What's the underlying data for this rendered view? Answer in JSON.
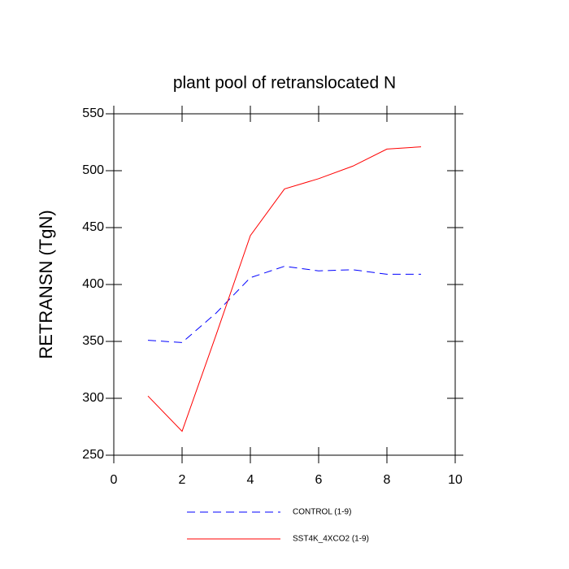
{
  "chart_data": {
    "type": "line",
    "title": "plant pool of retranslocated N",
    "y_label": "RETRANSN  (TgN)",
    "x": [
      1,
      2,
      3,
      4,
      5,
      6,
      7,
      8,
      9
    ],
    "series": [
      {
        "name": "CONTROL (1-9)",
        "color": "#0000ff",
        "dash": true,
        "values": [
          351,
          349,
          375,
          406,
          416,
          412,
          413,
          409,
          409
        ]
      },
      {
        "name": "SST4K_4XCO2 (1-9)",
        "color": "#ff0000",
        "dash": false,
        "values": [
          302,
          271,
          356,
          443,
          484,
          493,
          504,
          519,
          521
        ]
      }
    ],
    "xlim": [
      0,
      10
    ],
    "xticks": [
      0,
      2,
      4,
      6,
      8,
      10
    ],
    "ylim": [
      250,
      550
    ],
    "yticks": [
      250,
      300,
      350,
      400,
      450,
      500,
      550
    ]
  }
}
